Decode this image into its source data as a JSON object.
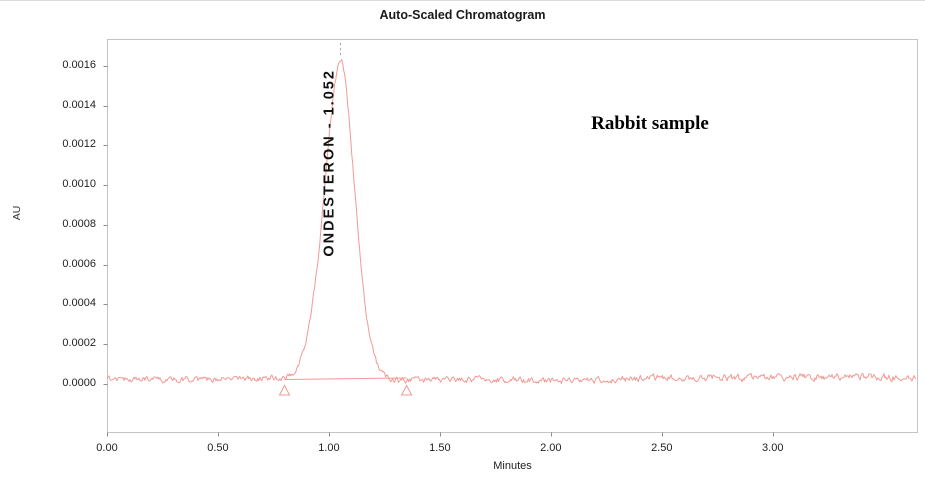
{
  "chart_data": {
    "type": "line",
    "title": "Auto-Scaled Chromatogram",
    "annotation": "Rabbit sample",
    "xlabel": "Minutes",
    "ylabel": "AU",
    "xlim": [
      0,
      3.65
    ],
    "ylim": [
      -0.000242,
      0.001736
    ],
    "x_ticks": [
      0,
      0.5,
      1.0,
      1.5,
      2.0,
      2.5,
      3.0
    ],
    "x_tick_labels": [
      "0.00",
      "0.50",
      "1.00",
      "1.50",
      "2.00",
      "2.50",
      "3.00"
    ],
    "y_ticks": [
      0.0,
      0.0002,
      0.0004,
      0.0006,
      0.0008,
      0.001,
      0.0012,
      0.0014,
      0.0016
    ],
    "y_tick_labels": [
      "0.0000",
      "0.0002",
      "0.0004",
      "0.0006",
      "0.0008",
      "0.0010",
      "0.0012",
      "0.0014",
      "0.0016"
    ],
    "grid": false,
    "line_color": "#f19a94",
    "frame_color": "#c4c4c4",
    "tick_color": "#8c8c8c",
    "peak": {
      "label": "ONDESTERON - 1.052",
      "compound": "ONDESTERON",
      "retention_time_min": 1.052,
      "apex_au": 0.00164,
      "integration_start_min": 0.8,
      "integration_end_min": 1.35,
      "baseline_start_au": 2.2e-05,
      "baseline_end_au": 3e-05,
      "marker_shape": "triangle"
    },
    "baseline_noise": {
      "level_au": 2e-05,
      "amplitude_au": 3e-05,
      "drift_end_au": 3.4e-05
    }
  }
}
